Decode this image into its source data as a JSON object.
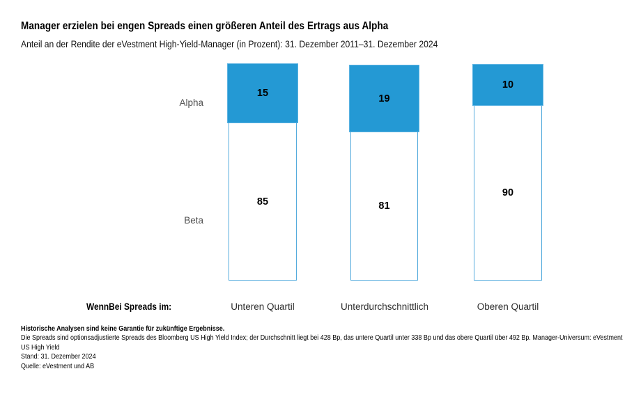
{
  "chart_data": {
    "type": "bar",
    "stacked": true,
    "percent": true,
    "grid": false,
    "title": "Manager erzielen bei engen Spreads einen größeren Anteil des Ertrags aus Alpha",
    "subtitle": "Anteil an der Rendite der eVestment High-Yield-Manager (in Prozent): 31. Dezember 2011–31. Dezember 2024",
    "row_label": "WennBei Spreads im:",
    "categories": [
      "Unteren Quartil",
      "Unterdurchschnittlich",
      "Oberen Quartil"
    ],
    "series": [
      {
        "name": "Alpha",
        "values": [
          15,
          19,
          10
        ],
        "color": "#2499d4"
      },
      {
        "name": "Beta",
        "values": [
          85,
          81,
          90
        ],
        "color": "#ffffff"
      }
    ],
    "value_unit": "Prozent",
    "ylim": [
      0,
      100
    ],
    "legend_position": "left-of-bars",
    "layout_note": "segment heights in source graphic are not strictly proportional to values; alpha segments are visually enlarged"
  },
  "footnotes": {
    "disclaimer": "Historische Analysen sind keine Garantie für zukünftige Ergebnisse.",
    "methodology_line1": "Die Spreads sind optionsadjustierte Spreads des Bloomberg US High Yield Index; der Durchschnitt liegt bei 428 Bp, das untere Quartil unter 338 Bp und das obere Quartil über 492 Bp. Manager-Universum: eVestment",
    "methodology_line2": "US High Yield",
    "as_of": "Stand: 31. Dezember 2024",
    "source": "Quelle: eVestment und AB"
  },
  "colors": {
    "alpha_fill": "#2499d4",
    "bar_border": "#54abdd",
    "series_label_gray": "#4f4f4f",
    "category_label_gray": "#2f2f2f"
  }
}
